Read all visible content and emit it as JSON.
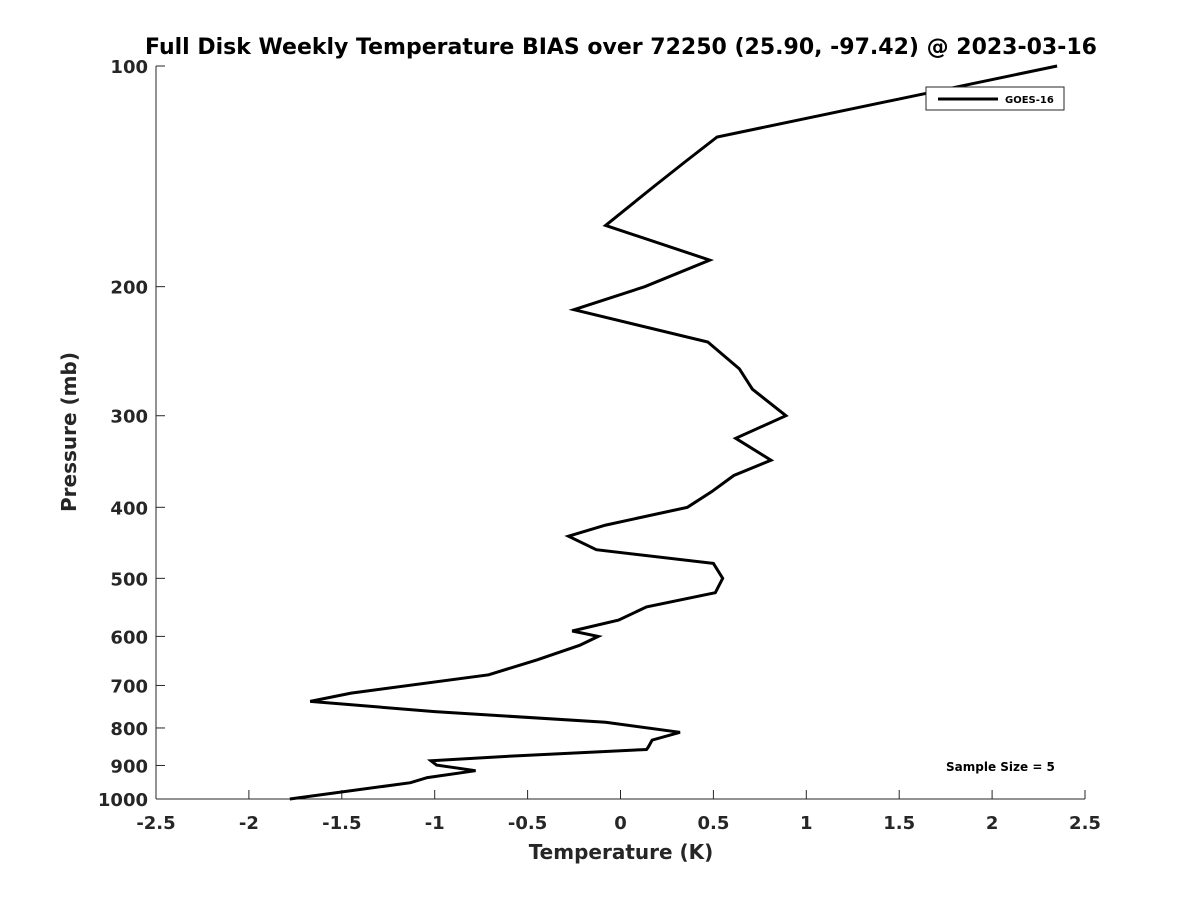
{
  "chart_data": {
    "type": "line",
    "title": "Full Disk Weekly Temperature BIAS over 72250 (25.90, -97.42) @ 2023-03-16",
    "xlabel": "Temperature (K)",
    "ylabel": "Pressure (mb)",
    "xlim": [
      -2.5,
      2.5
    ],
    "ylim": [
      100,
      1000
    ],
    "yscale": "log",
    "yreversed": true,
    "x_ticks": [
      -2.5,
      -2,
      -1.5,
      -1,
      -0.5,
      0,
      0.5,
      1,
      1.5,
      2,
      2.5
    ],
    "x_tick_labels": [
      "-2.5",
      "-2",
      "-1.5",
      "-1",
      "-0.5",
      "0",
      "0.5",
      "1",
      "1.5",
      "2",
      "2.5"
    ],
    "y_ticks": [
      100,
      200,
      300,
      400,
      500,
      600,
      700,
      800,
      900,
      1000
    ],
    "y_tick_labels": [
      "100",
      "200",
      "300",
      "400",
      "500",
      "600",
      "700",
      "800",
      "900",
      "1000"
    ],
    "grid": false,
    "legend_position": "top-right",
    "series": [
      {
        "name": "GOES-16",
        "color": "#000000",
        "points": [
          [
            2.35,
            100
          ],
          [
            0.52,
            125
          ],
          [
            0.35,
            135
          ],
          [
            0.18,
            146
          ],
          [
            -0.08,
            165
          ],
          [
            0.48,
            184
          ],
          [
            0.13,
            200
          ],
          [
            -0.25,
            215
          ],
          [
            0.47,
            238
          ],
          [
            0.64,
            259
          ],
          [
            0.71,
            276
          ],
          [
            0.89,
            300
          ],
          [
            0.62,
            322
          ],
          [
            0.81,
            345
          ],
          [
            0.61,
            362
          ],
          [
            0.49,
            381
          ],
          [
            0.36,
            400
          ],
          [
            -0.08,
            423
          ],
          [
            -0.28,
            438
          ],
          [
            -0.13,
            457
          ],
          [
            0.5,
            477
          ],
          [
            0.55,
            500
          ],
          [
            0.51,
            523
          ],
          [
            0.14,
            547
          ],
          [
            -0.01,
            570
          ],
          [
            -0.26,
            590
          ],
          [
            -0.12,
            600
          ],
          [
            -0.22,
            617
          ],
          [
            -0.45,
            646
          ],
          [
            -0.71,
            677
          ],
          [
            -1.45,
            717
          ],
          [
            -1.67,
            736
          ],
          [
            -1.0,
            760
          ],
          [
            -0.08,
            786
          ],
          [
            0.32,
            811
          ],
          [
            0.17,
            831
          ],
          [
            0.15,
            849
          ],
          [
            0.14,
            856
          ],
          [
            -0.59,
            874
          ],
          [
            -1.02,
            887
          ],
          [
            -0.99,
            899
          ],
          [
            -0.78,
            915
          ],
          [
            -1.04,
            935
          ],
          [
            -1.13,
            950
          ],
          [
            -1.78,
            1000
          ]
        ]
      }
    ],
    "annotation": "Sample Size = 5"
  }
}
